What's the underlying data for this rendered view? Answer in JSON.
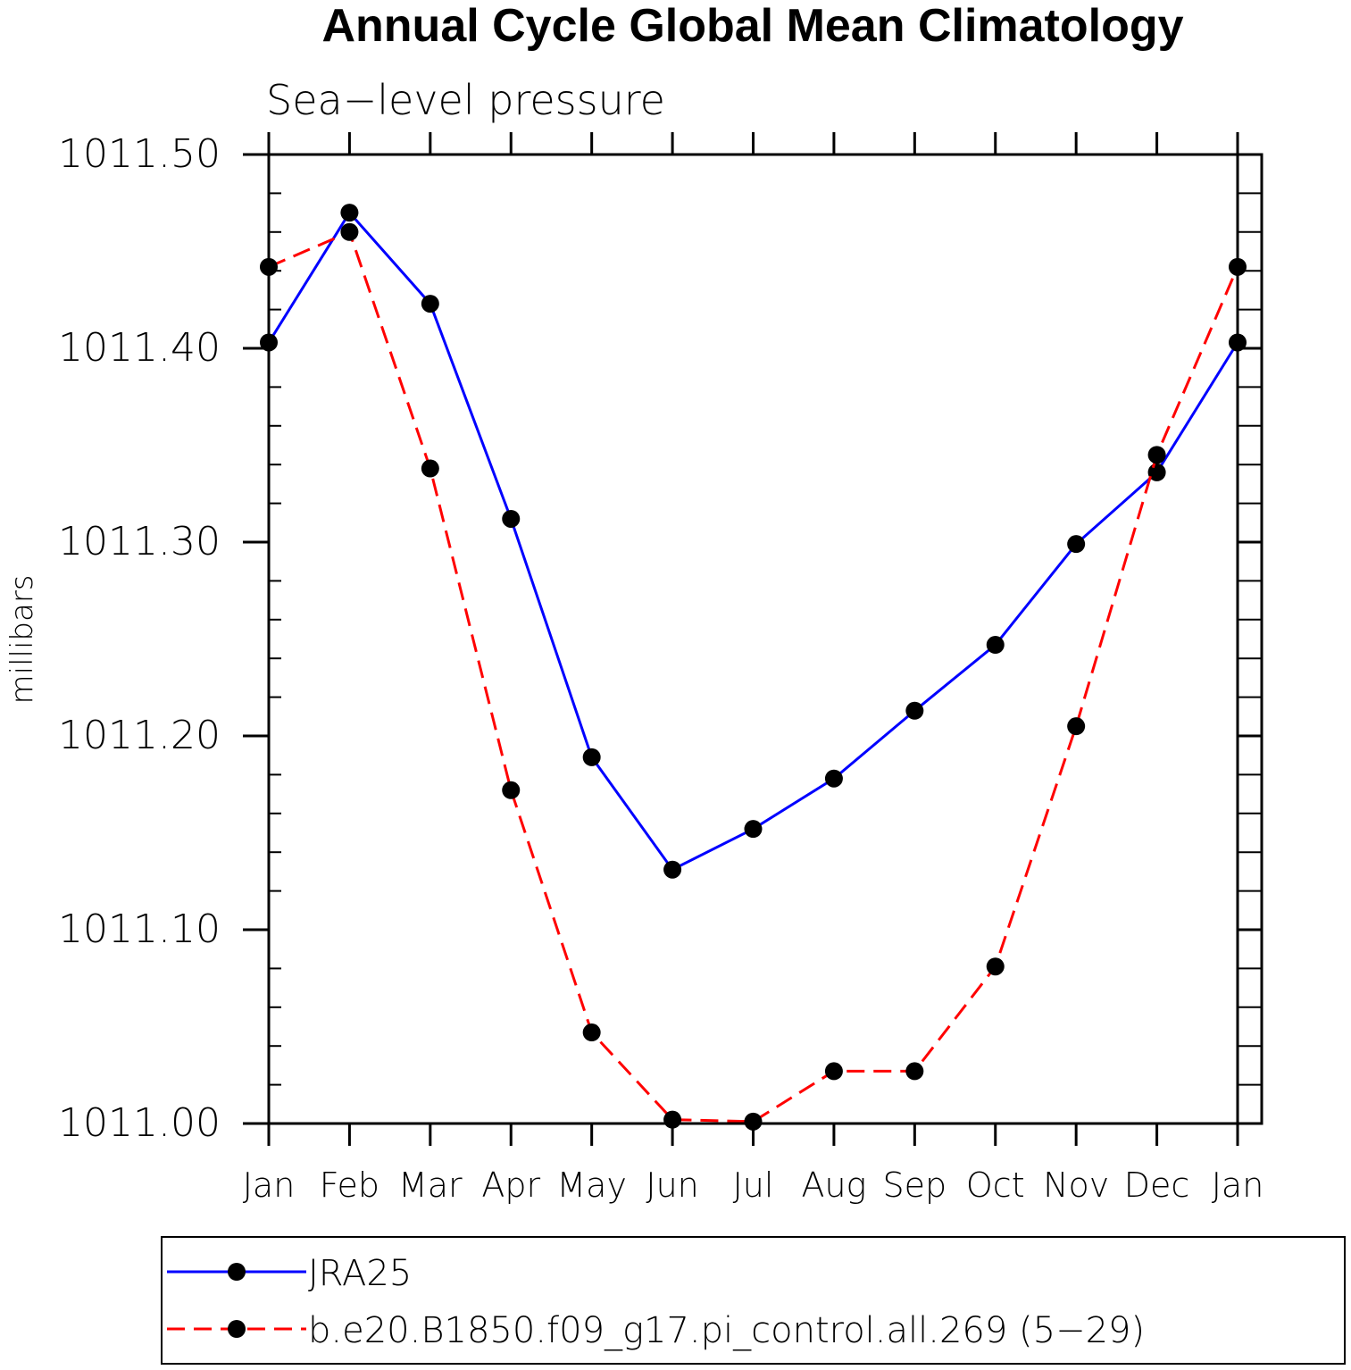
{
  "chart_data": {
    "type": "line",
    "title": "Annual Cycle Global Mean Climatology",
    "subtitle": "Sea−level pressure",
    "ylabel": "millibars",
    "xlabel": "",
    "categories": [
      "Jan",
      "Feb",
      "Mar",
      "Apr",
      "May",
      "Jun",
      "Jul",
      "Aug",
      "Sep",
      "Oct",
      "Nov",
      "Dec",
      "Jan"
    ],
    "ylim": [
      1011.0,
      1011.5
    ],
    "yticks": [
      "1011.00",
      "1011.10",
      "1011.20",
      "1011.30",
      "1011.40",
      "1011.50"
    ],
    "ytick_values": [
      1011.0,
      1011.1,
      1011.2,
      1011.3,
      1011.4,
      1011.5
    ],
    "grid": false,
    "legend_position": "bottom",
    "series": [
      {
        "name": "JRA25",
        "color": "#0000ff",
        "dash": "solid",
        "marker": "filled-circle",
        "values": [
          1011.403,
          1011.47,
          1011.423,
          1011.312,
          1011.189,
          1011.131,
          1011.152,
          1011.178,
          1011.213,
          1011.247,
          1011.299,
          1011.336,
          1011.403
        ]
      },
      {
        "name": "b.e20.B1850.f09_g17.pi_control.all.269 (5−29)",
        "color": "#ff0000",
        "dash": "dashed",
        "marker": "filled-circle",
        "values": [
          1011.442,
          1011.46,
          1011.338,
          1011.172,
          1011.047,
          1011.002,
          1011.001,
          1011.027,
          1011.027,
          1011.081,
          1011.205,
          1011.345,
          1011.442
        ]
      }
    ]
  }
}
